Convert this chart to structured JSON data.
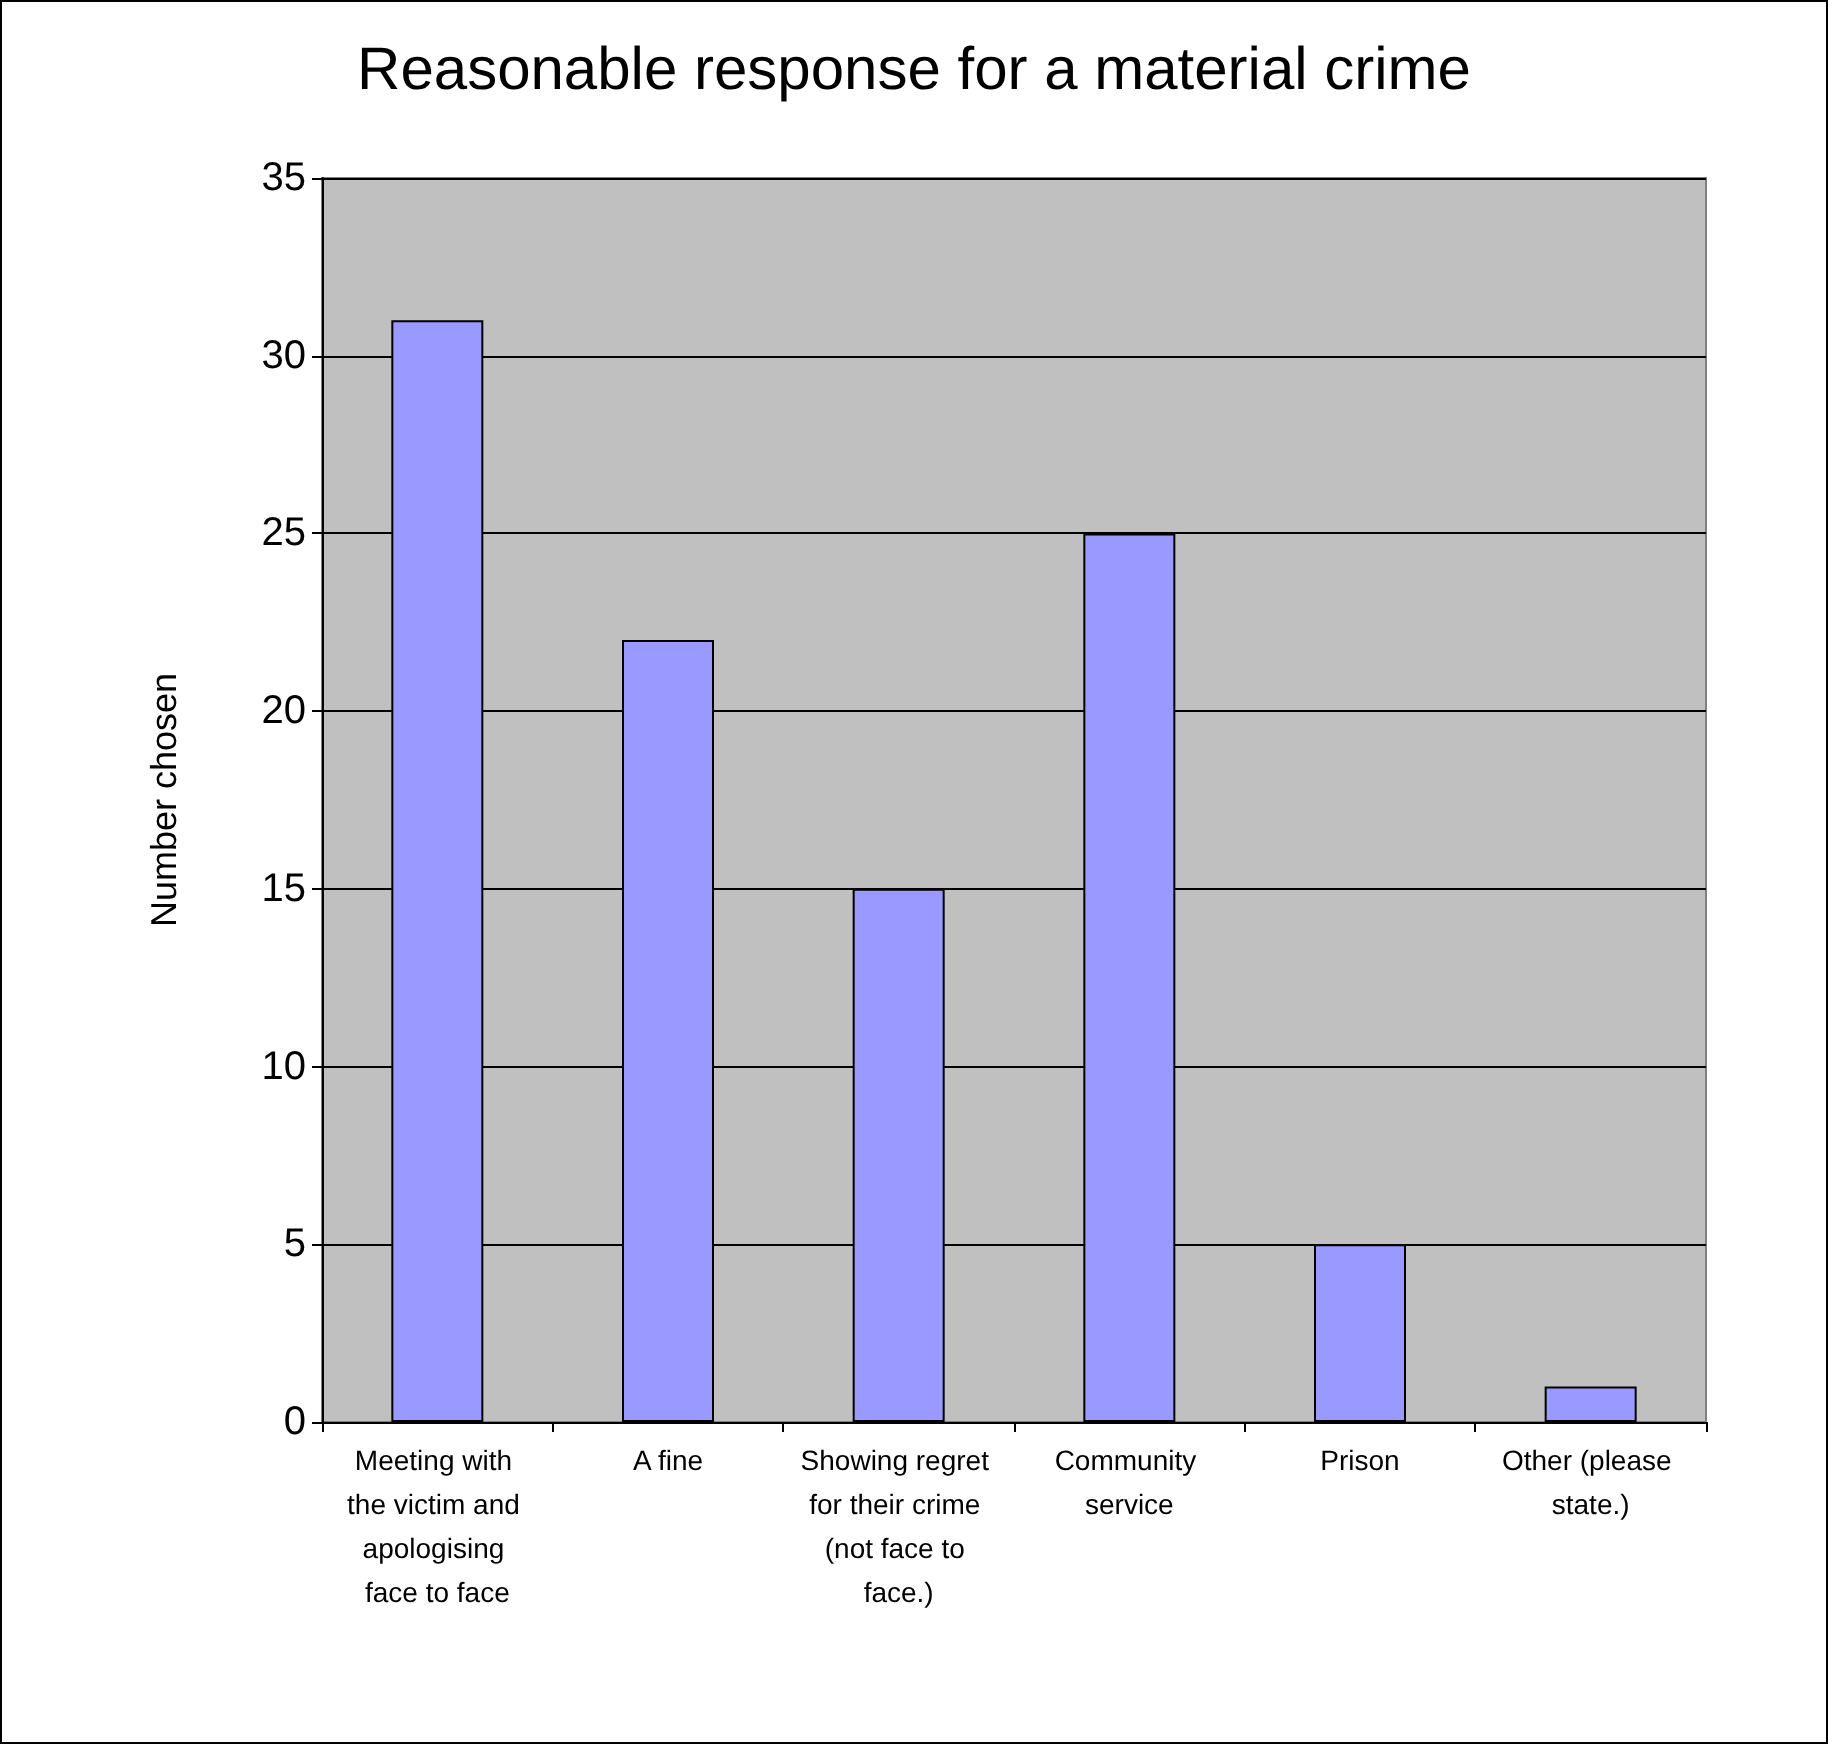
{
  "chart_data": {
    "type": "bar",
    "title": "Reasonable response for a material crime",
    "ylabel": "Number chosen",
    "categories": [
      "Meeting with the victim and apologising face to face",
      "A fine",
      "Showing regret for their crime (not face to face.)",
      "Community service",
      "Prison",
      "Other (please state.)"
    ],
    "values": [
      31,
      22,
      15,
      25,
      5,
      1
    ],
    "color": "#9999ff",
    "ylim": [
      0,
      35
    ],
    "yticks": [
      0,
      5,
      10,
      15,
      20,
      25,
      30,
      35
    ],
    "grid": "y"
  }
}
